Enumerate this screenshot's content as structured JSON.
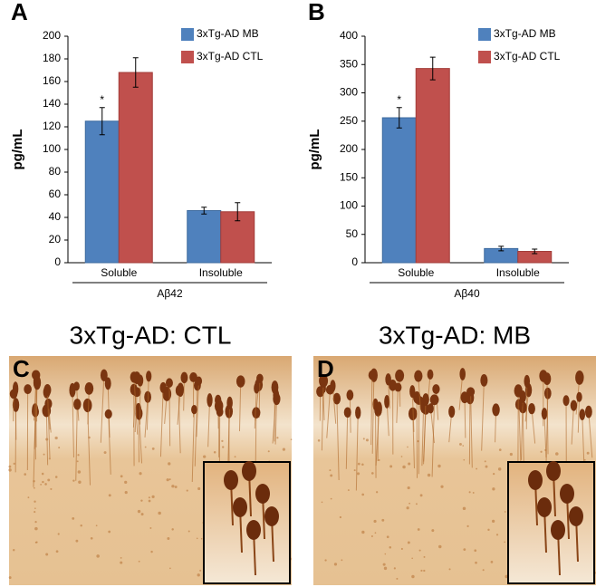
{
  "chart_data": [
    {
      "type": "bar",
      "panel": "A",
      "ylabel": "pg/mL",
      "xlabel": "Aβ42",
      "categories": [
        "Soluble",
        "Insoluble"
      ],
      "series": [
        {
          "name": "3xTg-AD MB",
          "color": "#4f81bd",
          "values": [
            125,
            46
          ],
          "errors": [
            12,
            3
          ]
        },
        {
          "name": "3xTg-AD CTL",
          "color": "#c0504d",
          "values": [
            168,
            45
          ],
          "errors": [
            13,
            8
          ]
        }
      ],
      "annotation": "*",
      "ylim": [
        0,
        200
      ],
      "yticks": [
        0,
        20,
        40,
        60,
        80,
        100,
        120,
        140,
        160,
        180,
        200
      ]
    },
    {
      "type": "bar",
      "panel": "B",
      "ylabel": "pg/mL",
      "xlabel": "Aβ40",
      "categories": [
        "Soluble",
        "Insoluble"
      ],
      "series": [
        {
          "name": "3xTg-AD MB",
          "color": "#4f81bd",
          "values": [
            256,
            25
          ],
          "errors": [
            18,
            4
          ]
        },
        {
          "name": "3xTg-AD CTL",
          "color": "#c0504d",
          "values": [
            343,
            20
          ],
          "errors": [
            20,
            4
          ]
        }
      ],
      "annotation": "*",
      "ylim": [
        0,
        400
      ],
      "yticks": [
        0,
        50,
        100,
        150,
        200,
        250,
        300,
        350,
        400
      ]
    }
  ],
  "images": [
    {
      "panel": "C",
      "title": "3xTg-AD: CTL"
    },
    {
      "panel": "D",
      "title": "3xTg-AD: MB"
    }
  ]
}
